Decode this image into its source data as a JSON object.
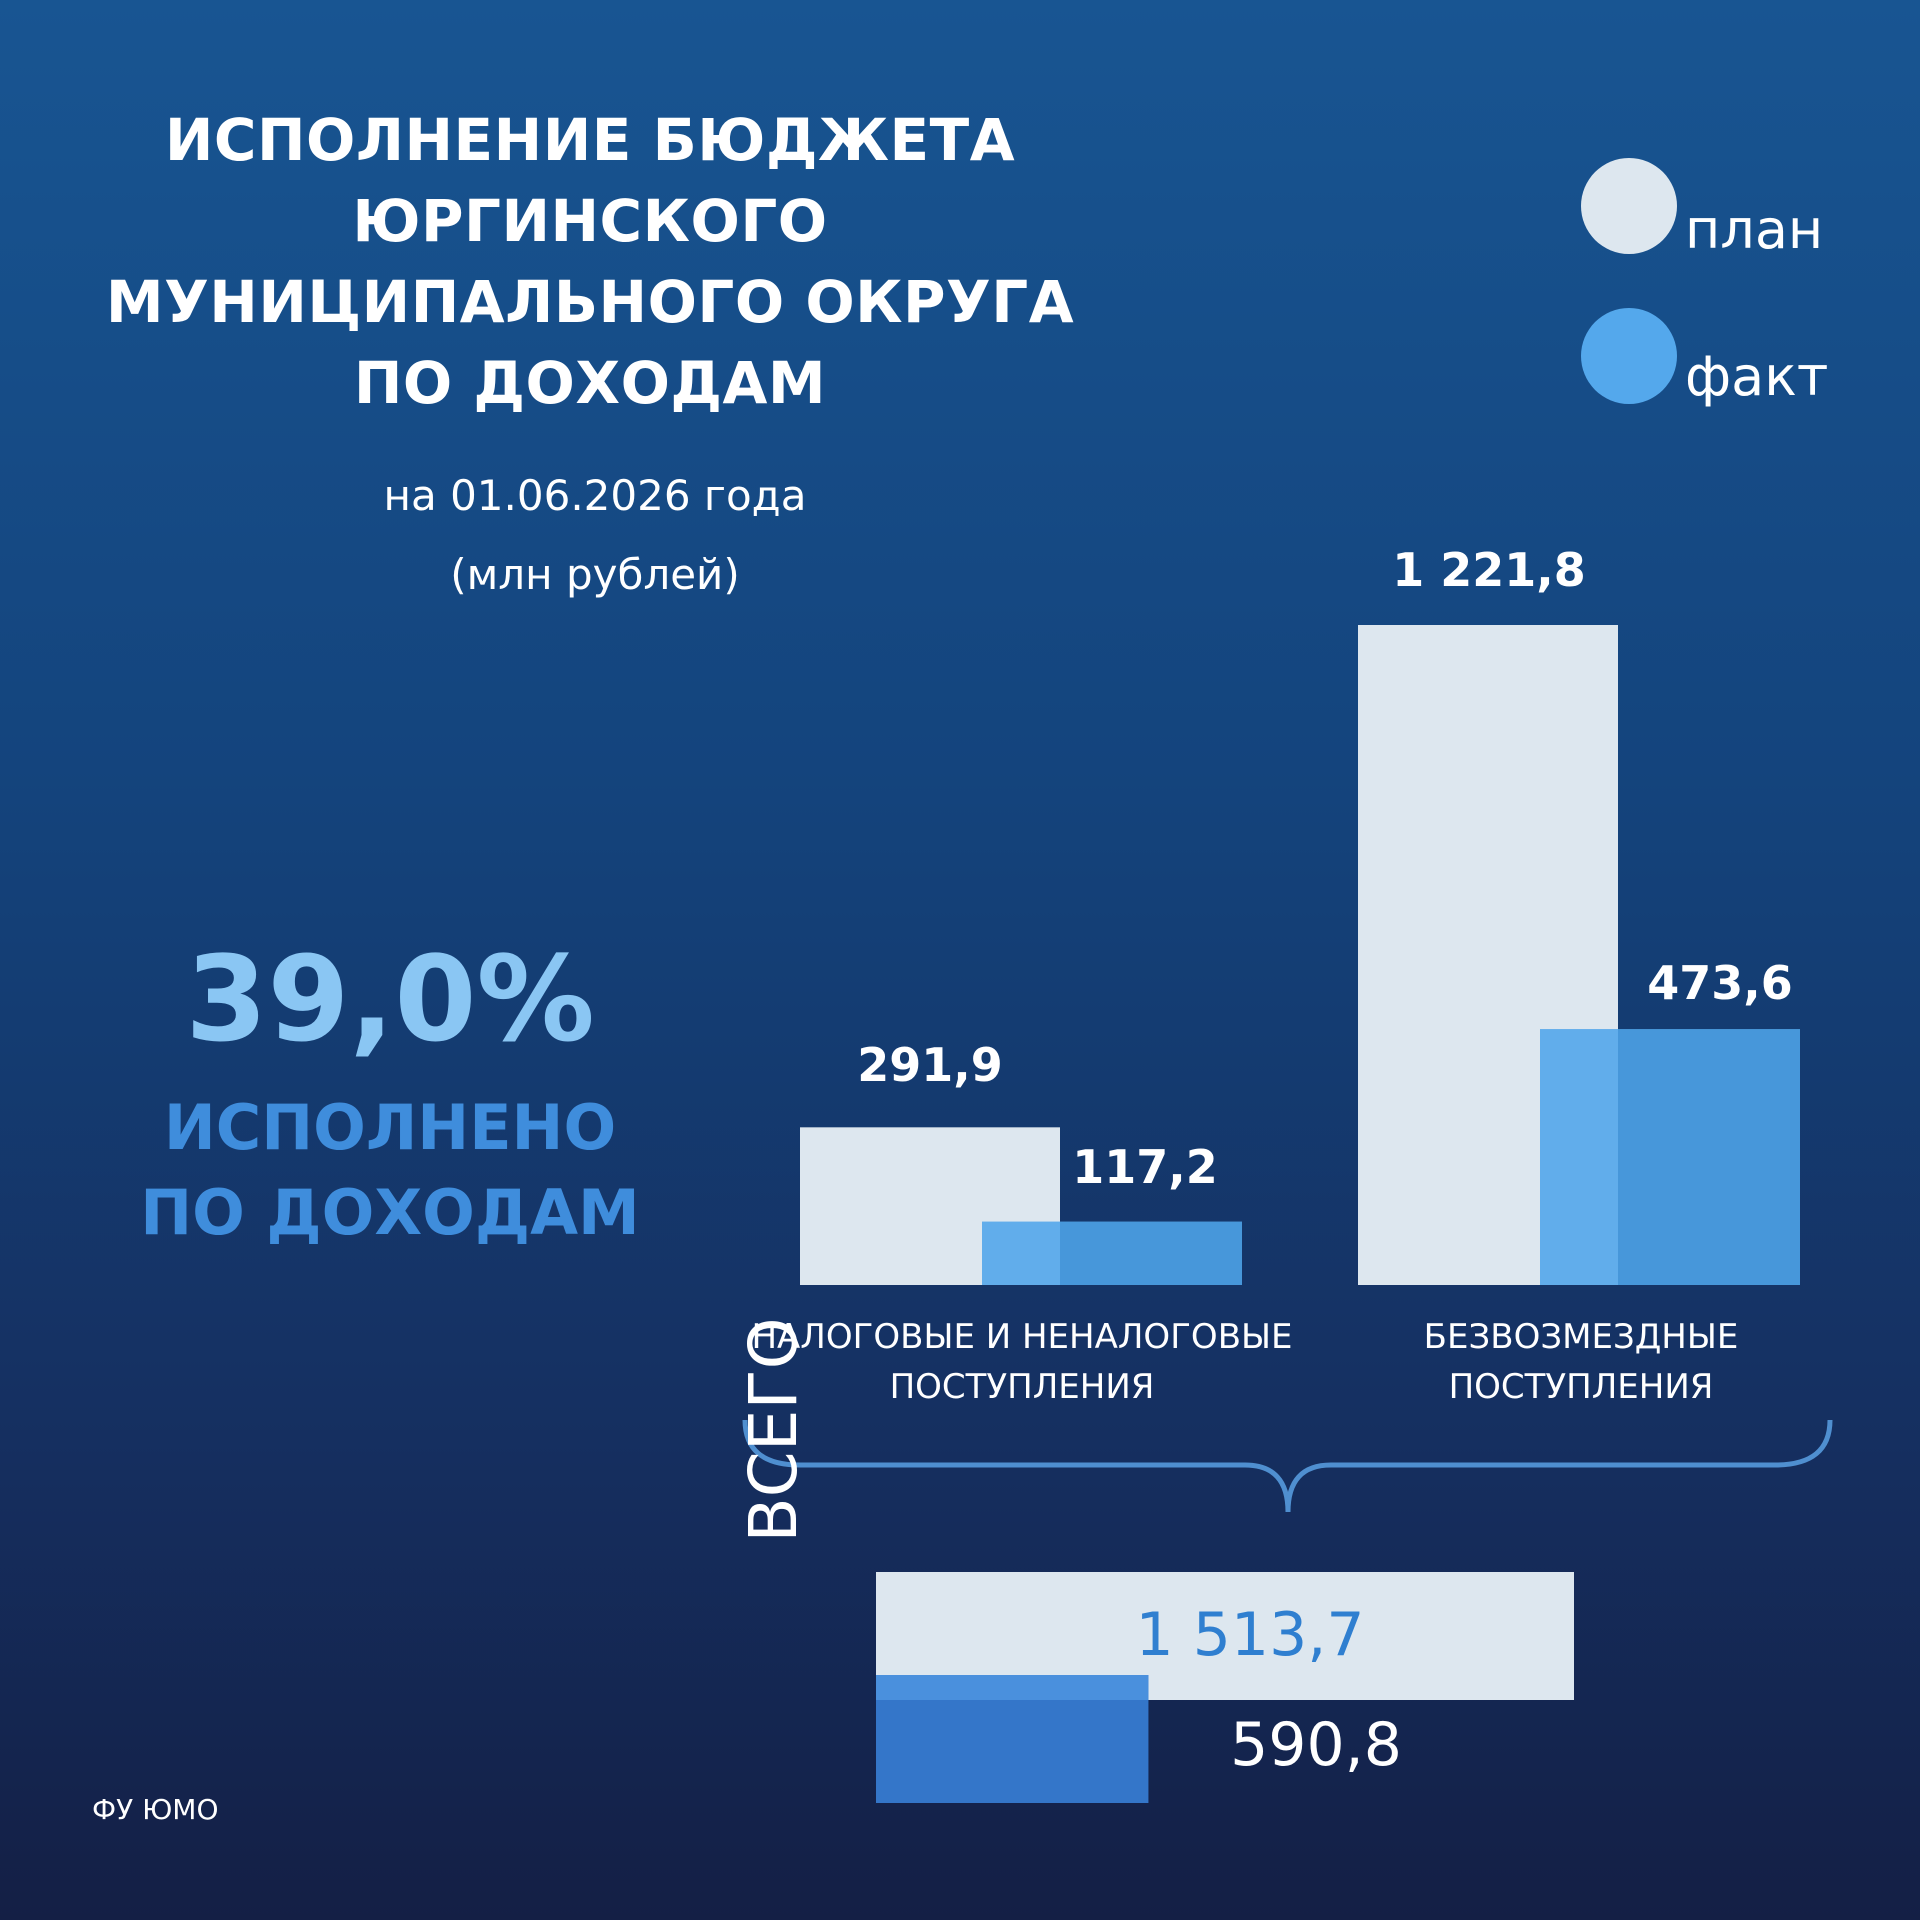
{
  "title_lines": [
    "ИСПОЛНЕНИЕ БЮДЖЕТА",
    "ЮРГИНСКОГО",
    "МУНИЦИПАЛЬНОГО ОКРУГА",
    "ПО ДОХОДАМ"
  ],
  "subtitle": {
    "date": "на 01.06.2026 года",
    "units": "(млн рублей)"
  },
  "legend": [
    {
      "label": "план",
      "color": "#dde7ef"
    },
    {
      "label": "факт",
      "color": "#54a8ec"
    }
  ],
  "summary": {
    "percent": "39,0%",
    "caption_lines": [
      "ИСПОЛНЕНО",
      "ПО ДОХОДАМ"
    ]
  },
  "colors": {
    "plan": "#dde7ef",
    "fact": "#61adeb",
    "fact_overlap": "#4797da",
    "total_fact": "#3476c9",
    "total_plan_text": "#2f7fd0"
  },
  "chart_data": [
    {
      "type": "bar",
      "categories": [
        "НАЛОГОВЫЕ И НЕНАЛОГОВЫЕ ПОСТУПЛЕНИЯ",
        "БЕЗВОЗМЕЗДНЫЕ ПОСТУПЛЕНИЯ"
      ],
      "category_label_lines": [
        [
          "НАЛОГОВЫЕ И НЕНАЛОГОВЫЕ",
          "ПОСТУПЛЕНИЯ"
        ],
        [
          "БЕЗВОЗМЕЗДНЫЕ",
          "ПОСТУПЛЕНИЯ"
        ]
      ],
      "series": [
        {
          "name": "план",
          "values": [
            291.9,
            1221.8
          ],
          "labels": [
            "291,9",
            "1 221,8"
          ]
        },
        {
          "name": "факт",
          "values": [
            117.2,
            473.6
          ],
          "labels": [
            "117,2",
            "473,6"
          ]
        }
      ],
      "ylim": [
        0,
        1221.8
      ]
    },
    {
      "type": "bar",
      "orientation": "horizontal",
      "categories": [
        "ВСЕГО"
      ],
      "series": [
        {
          "name": "план",
          "values": [
            1513.7
          ],
          "labels": [
            "1 513,7"
          ]
        },
        {
          "name": "факт",
          "values": [
            590.8
          ],
          "labels": [
            "590,8"
          ]
        }
      ],
      "xlim": [
        0,
        1513.7
      ]
    }
  ],
  "total_label": "ВСЕГО",
  "footer": "ФУ ЮМО"
}
